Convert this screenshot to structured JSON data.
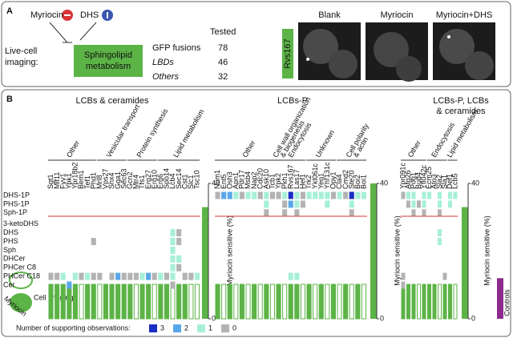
{
  "panel_a": {
    "label": "A",
    "drug1": "Myriocin",
    "drug2": "DHS",
    "row_label": [
      "Live-cell",
      "imaging:"
    ],
    "pathway": [
      "Sphingolipid",
      "metabolism"
    ],
    "tested_header": "Tested",
    "table": [
      [
        "GFP fusions",
        "78"
      ],
      [
        "LBDs",
        "46"
      ],
      [
        "Others",
        "32"
      ]
    ],
    "strain": "Rvs167",
    "images": [
      "Blank",
      "Myriocin",
      "Myriocin+DHS"
    ]
  },
  "panel_b": {
    "label": "B",
    "rows": [
      "DHS-1P",
      "PHS-1P",
      "Sph-1P",
      "3-ketoDHS",
      "DHS",
      "PHS",
      "Sph",
      "DHCer",
      "PHCer C8",
      "PHCer C18",
      "Cer"
    ],
    "side_labels": [
      "Myriocin",
      "Cell imaging"
    ],
    "axis_label": "Myriocin sensitive (%)",
    "ylim": [
      0,
      40
    ],
    "yticks": [
      0,
      40
    ],
    "controls": {
      "name": "Controls",
      "value": 12,
      "color": "#8e2b8e"
    },
    "bar_color": "#5cb346",
    "legend": {
      "title": "Number of supporting observations:",
      "levels": [
        3,
        2,
        1,
        0
      ],
      "colors": [
        "#1a2fc4",
        "#5aa8ea",
        "#a6f0d6",
        "#b3b3b3"
      ]
    },
    "groups": [
      {
        "title": [
          "LCBs & ceramides"
        ],
        "sensitive": 33,
        "subcategories": [
          {
            "name": [
              "Other"
            ],
            "span": [
              0,
              7
            ]
          },
          {
            "name": [
              "Vesicular transport"
            ],
            "span": [
              8,
              12
            ]
          },
          {
            "name": [
              "Protein synthesis"
            ],
            "span": [
              13,
              17
            ]
          },
          {
            "name": [
              "Lipid metabolism"
            ],
            "span": [
              18,
              24
            ]
          }
        ],
        "genes": [
          "Sgt1",
          "Mlf11",
          "Fyv1",
          "Ypk1",
          "Ypr18b2",
          "Bem1",
          "Tef1",
          "Phd1",
          "Mrl8",
          "Vps27",
          "Snx4",
          "Gga1",
          "Sec63",
          "Gcn2",
          "Mtr4",
          "Tfs1",
          "Erg27",
          "Erg10",
          "Erg6",
          "Spo14",
          "Lcb4",
          "Sec14",
          "Cst1",
          "Slc1",
          "Tsc10"
        ],
        "matrix": [
          [
            null,
            null,
            null,
            null,
            null,
            null,
            null,
            null,
            null,
            null,
            null,
            null,
            null,
            null,
            null,
            null,
            null,
            null,
            null,
            null,
            null,
            null,
            null,
            null,
            null
          ],
          [
            null,
            null,
            null,
            null,
            null,
            null,
            null,
            null,
            null,
            null,
            null,
            null,
            null,
            null,
            null,
            null,
            null,
            null,
            null,
            null,
            null,
            null,
            null,
            null,
            null
          ],
          [
            null,
            null,
            null,
            null,
            null,
            null,
            null,
            null,
            null,
            null,
            null,
            null,
            null,
            null,
            null,
            null,
            null,
            null,
            null,
            null,
            null,
            null,
            null,
            null,
            null
          ],
          [
            null,
            null,
            null,
            null,
            null,
            null,
            null,
            null,
            null,
            null,
            null,
            null,
            null,
            null,
            null,
            null,
            null,
            null,
            null,
            null,
            null,
            null,
            null,
            null,
            null
          ],
          [
            null,
            null,
            null,
            null,
            null,
            null,
            null,
            null,
            null,
            null,
            null,
            null,
            null,
            null,
            null,
            null,
            null,
            null,
            null,
            null,
            1,
            0,
            null,
            null,
            null
          ],
          [
            null,
            null,
            null,
            null,
            null,
            null,
            null,
            0,
            null,
            null,
            null,
            null,
            null,
            null,
            null,
            null,
            null,
            null,
            null,
            null,
            1,
            0,
            null,
            null,
            null
          ],
          [
            null,
            null,
            null,
            null,
            null,
            null,
            null,
            null,
            null,
            null,
            null,
            null,
            null,
            null,
            null,
            null,
            null,
            null,
            null,
            null,
            1,
            null,
            null,
            null,
            null
          ],
          [
            null,
            null,
            null,
            null,
            null,
            null,
            null,
            null,
            null,
            null,
            null,
            null,
            null,
            null,
            null,
            null,
            null,
            null,
            null,
            null,
            1,
            1,
            null,
            null,
            null
          ],
          [
            null,
            null,
            null,
            null,
            null,
            null,
            null,
            null,
            null,
            null,
            null,
            null,
            null,
            null,
            null,
            null,
            null,
            null,
            null,
            null,
            1,
            0,
            null,
            null,
            null
          ],
          [
            0,
            0,
            1,
            null,
            1,
            0,
            1,
            0,
            0,
            null,
            0,
            2,
            0,
            0,
            0,
            1,
            2,
            0,
            1,
            0,
            1,
            null,
            0,
            0,
            1
          ],
          [
            null,
            null,
            null,
            2,
            null,
            null,
            null,
            null,
            null,
            null,
            null,
            null,
            null,
            null,
            null,
            null,
            null,
            null,
            null,
            null,
            0,
            null,
            null,
            null,
            null
          ]
        ],
        "imaging": [
          1,
          1,
          1,
          1,
          1,
          0,
          1,
          1,
          0,
          1,
          1,
          1,
          1,
          1,
          0,
          1,
          1,
          0,
          1,
          1,
          0,
          1,
          1,
          0,
          0
        ]
      },
      {
        "title": [
          "LCBs-P"
        ],
        "sensitive": 40,
        "subcategories": [
          {
            "name": [
              "Other"
            ],
            "span": [
              0,
              10
            ]
          },
          {
            "name": [
              "Cell wall organization",
              "& biogenesis"
            ],
            "span": [
              9,
              11
            ]
          },
          {
            "name": [
              "Endocytosis"
            ],
            "span": [
              11,
              14
            ]
          },
          {
            "name": [
              "Unknown"
            ],
            "span": [
              15,
              19
            ]
          },
          {
            "name": [
              "Cell polarity",
              "& actin"
            ],
            "span": [
              20,
              24
            ]
          }
        ],
        "genes": [
          "Num1",
          "Ent5",
          "Osh3",
          "Apn1",
          "Pdr17",
          "Msb4",
          "Nap2",
          "Cdc20",
          "Ask10",
          "Tcb1",
          "Ypk2",
          "Pkh1",
          "Rvs167",
          "Las17",
          "Hef1",
          "Trk2",
          "Ykl061c",
          "Yeg1",
          "Yhr131c",
          "Opy1",
          "Cla4",
          "Cmd2",
          "Ste20",
          "Boi2",
          "Boi1"
        ],
        "matrix": [
          [
            0,
            2,
            2,
            1,
            0,
            1,
            1,
            0,
            1,
            0,
            0,
            1,
            3,
            1,
            0,
            1,
            1,
            1,
            1,
            0,
            1,
            0,
            3,
            1,
            1
          ],
          [
            null,
            null,
            null,
            null,
            null,
            null,
            null,
            null,
            1,
            null,
            null,
            0,
            2,
            1,
            0,
            null,
            null,
            null,
            1,
            null,
            null,
            null,
            1,
            null,
            null
          ],
          [
            null,
            null,
            null,
            null,
            null,
            null,
            null,
            null,
            0,
            null,
            null,
            0,
            null,
            0,
            null,
            null,
            null,
            null,
            null,
            null,
            null,
            null,
            0,
            null,
            null
          ],
          [
            null,
            null,
            null,
            null,
            null,
            null,
            null,
            null,
            null,
            null,
            null,
            null,
            null,
            null,
            null,
            null,
            null,
            null,
            null,
            null,
            null,
            null,
            null,
            null,
            null
          ],
          [
            null,
            null,
            null,
            null,
            null,
            null,
            null,
            null,
            null,
            null,
            null,
            null,
            null,
            null,
            null,
            null,
            null,
            null,
            null,
            null,
            null,
            null,
            null,
            null,
            null
          ],
          [
            null,
            null,
            null,
            null,
            null,
            null,
            null,
            null,
            null,
            null,
            null,
            null,
            null,
            null,
            null,
            null,
            null,
            null,
            null,
            null,
            null,
            null,
            null,
            null,
            null
          ],
          [
            null,
            null,
            null,
            null,
            null,
            null,
            null,
            null,
            null,
            null,
            null,
            null,
            null,
            null,
            null,
            null,
            null,
            null,
            null,
            null,
            null,
            null,
            null,
            null,
            null
          ],
          [
            null,
            null,
            null,
            null,
            null,
            null,
            null,
            null,
            null,
            null,
            null,
            null,
            null,
            null,
            null,
            null,
            null,
            null,
            null,
            null,
            null,
            null,
            null,
            null,
            null
          ],
          [
            null,
            null,
            null,
            null,
            null,
            null,
            null,
            null,
            null,
            null,
            null,
            null,
            null,
            null,
            null,
            null,
            null,
            null,
            null,
            null,
            null,
            null,
            null,
            null,
            null
          ],
          [
            null,
            null,
            null,
            null,
            null,
            null,
            null,
            null,
            null,
            null,
            null,
            null,
            1,
            1,
            null,
            null,
            null,
            null,
            null,
            null,
            null,
            null,
            null,
            null,
            null
          ],
          [
            null,
            null,
            null,
            null,
            null,
            null,
            null,
            null,
            null,
            null,
            null,
            null,
            null,
            null,
            null,
            null,
            null,
            null,
            null,
            null,
            null,
            null,
            null,
            null,
            null
          ]
        ],
        "imaging": [
          1,
          0,
          1,
          0,
          1,
          0,
          1,
          0,
          1,
          0,
          1,
          0,
          1,
          1,
          0,
          1,
          0,
          1,
          0,
          1,
          0,
          1,
          0,
          1,
          0
        ]
      },
      {
        "title": [
          "LCBs-P, LCBs",
          "& ceramides"
        ],
        "sensitive": 33,
        "subcategories": [
          {
            "name": [
              "Other"
            ],
            "span": [
              0,
              4
            ]
          },
          {
            "name": [
              "Endocytosis"
            ],
            "span": [
              5,
              8
            ]
          },
          {
            "name": [
              "Lipid metabolism"
            ],
            "span": [
              9,
              10
            ]
          }
        ],
        "genes": [
          "Ypr091c",
          "Atg26",
          "Pog1",
          "Bud4",
          "Yfl042c",
          "Ecm25",
          "Ato3",
          "Sla2",
          "Sla1",
          "Def1",
          "Lcb5"
        ],
        "matrix": [
          [
            0,
            1,
            1,
            null,
            1,
            1,
            null,
            1,
            null,
            1,
            1
          ],
          [
            null,
            0,
            1,
            0,
            1,
            null,
            null,
            1,
            null,
            1,
            null
          ],
          [
            null,
            null,
            0,
            null,
            0,
            null,
            null,
            0,
            null,
            null,
            null
          ],
          [
            null,
            null,
            null,
            null,
            null,
            null,
            null,
            null,
            null,
            null,
            null
          ],
          [
            null,
            null,
            null,
            null,
            null,
            null,
            null,
            1,
            null,
            null,
            null
          ],
          [
            null,
            null,
            null,
            null,
            null,
            null,
            null,
            1,
            null,
            null,
            null
          ],
          [
            null,
            null,
            null,
            null,
            null,
            null,
            null,
            null,
            null,
            null,
            null
          ],
          [
            null,
            null,
            null,
            null,
            null,
            null,
            null,
            null,
            null,
            null,
            null
          ],
          [
            null,
            null,
            null,
            null,
            null,
            null,
            null,
            null,
            null,
            null,
            null
          ],
          [
            0,
            null,
            null,
            null,
            null,
            null,
            null,
            null,
            0,
            null,
            null
          ],
          [
            0,
            null,
            null,
            null,
            null,
            null,
            null,
            null,
            null,
            null,
            null
          ]
        ],
        "imaging": [
          1,
          1,
          1,
          0,
          1,
          1,
          1,
          0,
          1,
          1,
          0
        ]
      }
    ]
  }
}
